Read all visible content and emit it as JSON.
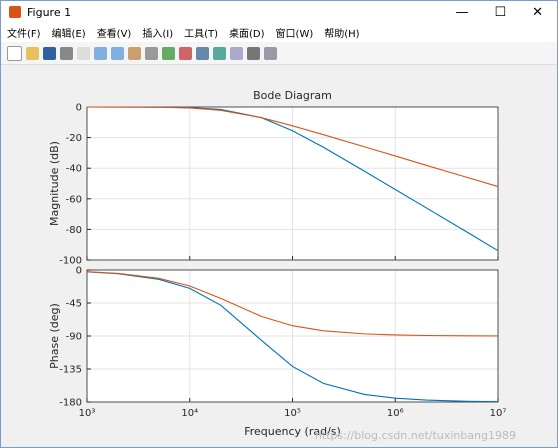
{
  "window": {
    "title": "Figure 1"
  },
  "menu": [
    "文件(F)",
    "编辑(E)",
    "查看(V)",
    "插入(I)",
    "工具(T)",
    "桌面(D)",
    "窗口(W)",
    "帮助(H)"
  ],
  "watermark": "https://blog.csdn.net/tuxinbang1989",
  "chart_data": [
    {
      "type": "line",
      "title": "Bode Diagram",
      "ylabel": "Magnitude (dB)",
      "xscale": "log",
      "grid": true,
      "x": [
        1000,
        2000,
        5000,
        10000,
        20000,
        50000,
        100000,
        200000,
        500000,
        1000000,
        2000000,
        5000000,
        10000000
      ],
      "xlim": [
        1000,
        10000000
      ],
      "ylim": [
        -100,
        0
      ],
      "yticks": [
        -100,
        -80,
        -60,
        -40,
        -20,
        0
      ],
      "series": [
        {
          "color": "#0072bd",
          "values": [
            0,
            -0.02,
            -0.1,
            -0.42,
            -1.58,
            -6.99,
            -15.5,
            -26.3,
            -41.9,
            -53.9,
            -65.9,
            -81.8,
            -93.9
          ]
        },
        {
          "color": "#d95319",
          "values": [
            0,
            -0.03,
            -0.17,
            -0.64,
            -2.15,
            -6.99,
            -12.3,
            -18.1,
            -26.0,
            -32.0,
            -38.1,
            -46.0,
            -52.0
          ]
        }
      ]
    },
    {
      "type": "line",
      "ylabel": "Phase (deg)",
      "xlabel": "Frequency  (rad/s)",
      "xscale": "log",
      "grid": true,
      "x": [
        1000,
        2000,
        5000,
        10000,
        20000,
        50000,
        100000,
        200000,
        500000,
        1000000,
        2000000,
        5000000,
        10000000
      ],
      "xlim": [
        1000,
        10000000
      ],
      "xticks": [
        {
          "value": 1000,
          "label": "10³"
        },
        {
          "value": 10000,
          "label": "10⁴"
        },
        {
          "value": 100000,
          "label": "10⁵"
        },
        {
          "value": 1000000,
          "label": "10⁶"
        },
        {
          "value": 10000000,
          "label": "10⁷"
        }
      ],
      "ylim": [
        -180,
        0
      ],
      "yticks": [
        -180,
        -135,
        -90,
        -45,
        0
      ],
      "series": [
        {
          "color": "#0072bd",
          "values": [
            -2.5,
            -5.1,
            -12.7,
            -25.0,
            -48.0,
            -96.0,
            -131.5,
            -154.6,
            -169.7,
            -174.8,
            -177.4,
            -179.0,
            -179.5
          ]
        },
        {
          "color": "#d95319",
          "values": [
            -2.3,
            -4.6,
            -11.3,
            -21.8,
            -38.7,
            -63.4,
            -76.0,
            -82.9,
            -87.1,
            -88.6,
            -89.3,
            -89.7,
            -89.9
          ]
        }
      ]
    }
  ]
}
